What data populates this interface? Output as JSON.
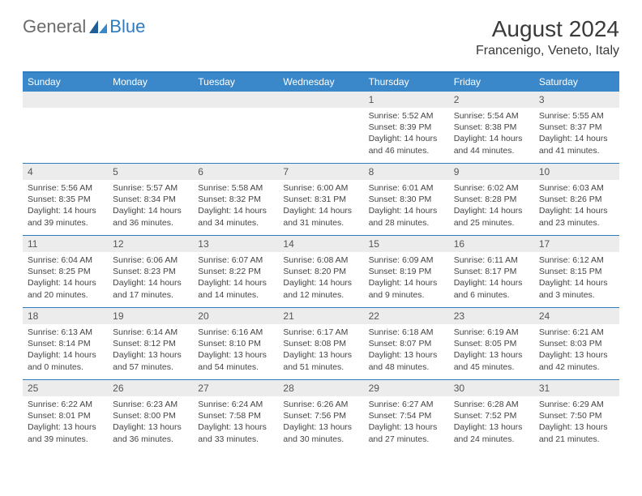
{
  "logo": {
    "text1": "General",
    "text2": "Blue"
  },
  "title": "August 2024",
  "subtitle": "Francenigo, Veneto, Italy",
  "colors": {
    "header_bar": "#3a88c9",
    "border": "#2f7bbf",
    "daynum_bg": "#ececec",
    "text": "#333333",
    "logo_gray": "#6b6b6b",
    "logo_blue": "#2f7bbf"
  },
  "day_headers": [
    "Sunday",
    "Monday",
    "Tuesday",
    "Wednesday",
    "Thursday",
    "Friday",
    "Saturday"
  ],
  "font": {
    "family": "Arial",
    "title_size": 28,
    "subtitle_size": 16,
    "header_size": 12,
    "body_size": 10.5
  },
  "weeks": [
    [
      {
        "day": "",
        "sunrise": "",
        "sunset": "",
        "daylight": ""
      },
      {
        "day": "",
        "sunrise": "",
        "sunset": "",
        "daylight": ""
      },
      {
        "day": "",
        "sunrise": "",
        "sunset": "",
        "daylight": ""
      },
      {
        "day": "",
        "sunrise": "",
        "sunset": "",
        "daylight": ""
      },
      {
        "day": "1",
        "sunrise": "Sunrise: 5:52 AM",
        "sunset": "Sunset: 8:39 PM",
        "daylight": "Daylight: 14 hours and 46 minutes."
      },
      {
        "day": "2",
        "sunrise": "Sunrise: 5:54 AM",
        "sunset": "Sunset: 8:38 PM",
        "daylight": "Daylight: 14 hours and 44 minutes."
      },
      {
        "day": "3",
        "sunrise": "Sunrise: 5:55 AM",
        "sunset": "Sunset: 8:37 PM",
        "daylight": "Daylight: 14 hours and 41 minutes."
      }
    ],
    [
      {
        "day": "4",
        "sunrise": "Sunrise: 5:56 AM",
        "sunset": "Sunset: 8:35 PM",
        "daylight": "Daylight: 14 hours and 39 minutes."
      },
      {
        "day": "5",
        "sunrise": "Sunrise: 5:57 AM",
        "sunset": "Sunset: 8:34 PM",
        "daylight": "Daylight: 14 hours and 36 minutes."
      },
      {
        "day": "6",
        "sunrise": "Sunrise: 5:58 AM",
        "sunset": "Sunset: 8:32 PM",
        "daylight": "Daylight: 14 hours and 34 minutes."
      },
      {
        "day": "7",
        "sunrise": "Sunrise: 6:00 AM",
        "sunset": "Sunset: 8:31 PM",
        "daylight": "Daylight: 14 hours and 31 minutes."
      },
      {
        "day": "8",
        "sunrise": "Sunrise: 6:01 AM",
        "sunset": "Sunset: 8:30 PM",
        "daylight": "Daylight: 14 hours and 28 minutes."
      },
      {
        "day": "9",
        "sunrise": "Sunrise: 6:02 AM",
        "sunset": "Sunset: 8:28 PM",
        "daylight": "Daylight: 14 hours and 25 minutes."
      },
      {
        "day": "10",
        "sunrise": "Sunrise: 6:03 AM",
        "sunset": "Sunset: 8:26 PM",
        "daylight": "Daylight: 14 hours and 23 minutes."
      }
    ],
    [
      {
        "day": "11",
        "sunrise": "Sunrise: 6:04 AM",
        "sunset": "Sunset: 8:25 PM",
        "daylight": "Daylight: 14 hours and 20 minutes."
      },
      {
        "day": "12",
        "sunrise": "Sunrise: 6:06 AM",
        "sunset": "Sunset: 8:23 PM",
        "daylight": "Daylight: 14 hours and 17 minutes."
      },
      {
        "day": "13",
        "sunrise": "Sunrise: 6:07 AM",
        "sunset": "Sunset: 8:22 PM",
        "daylight": "Daylight: 14 hours and 14 minutes."
      },
      {
        "day": "14",
        "sunrise": "Sunrise: 6:08 AM",
        "sunset": "Sunset: 8:20 PM",
        "daylight": "Daylight: 14 hours and 12 minutes."
      },
      {
        "day": "15",
        "sunrise": "Sunrise: 6:09 AM",
        "sunset": "Sunset: 8:19 PM",
        "daylight": "Daylight: 14 hours and 9 minutes."
      },
      {
        "day": "16",
        "sunrise": "Sunrise: 6:11 AM",
        "sunset": "Sunset: 8:17 PM",
        "daylight": "Daylight: 14 hours and 6 minutes."
      },
      {
        "day": "17",
        "sunrise": "Sunrise: 6:12 AM",
        "sunset": "Sunset: 8:15 PM",
        "daylight": "Daylight: 14 hours and 3 minutes."
      }
    ],
    [
      {
        "day": "18",
        "sunrise": "Sunrise: 6:13 AM",
        "sunset": "Sunset: 8:14 PM",
        "daylight": "Daylight: 14 hours and 0 minutes."
      },
      {
        "day": "19",
        "sunrise": "Sunrise: 6:14 AM",
        "sunset": "Sunset: 8:12 PM",
        "daylight": "Daylight: 13 hours and 57 minutes."
      },
      {
        "day": "20",
        "sunrise": "Sunrise: 6:16 AM",
        "sunset": "Sunset: 8:10 PM",
        "daylight": "Daylight: 13 hours and 54 minutes."
      },
      {
        "day": "21",
        "sunrise": "Sunrise: 6:17 AM",
        "sunset": "Sunset: 8:08 PM",
        "daylight": "Daylight: 13 hours and 51 minutes."
      },
      {
        "day": "22",
        "sunrise": "Sunrise: 6:18 AM",
        "sunset": "Sunset: 8:07 PM",
        "daylight": "Daylight: 13 hours and 48 minutes."
      },
      {
        "day": "23",
        "sunrise": "Sunrise: 6:19 AM",
        "sunset": "Sunset: 8:05 PM",
        "daylight": "Daylight: 13 hours and 45 minutes."
      },
      {
        "day": "24",
        "sunrise": "Sunrise: 6:21 AM",
        "sunset": "Sunset: 8:03 PM",
        "daylight": "Daylight: 13 hours and 42 minutes."
      }
    ],
    [
      {
        "day": "25",
        "sunrise": "Sunrise: 6:22 AM",
        "sunset": "Sunset: 8:01 PM",
        "daylight": "Daylight: 13 hours and 39 minutes."
      },
      {
        "day": "26",
        "sunrise": "Sunrise: 6:23 AM",
        "sunset": "Sunset: 8:00 PM",
        "daylight": "Daylight: 13 hours and 36 minutes."
      },
      {
        "day": "27",
        "sunrise": "Sunrise: 6:24 AM",
        "sunset": "Sunset: 7:58 PM",
        "daylight": "Daylight: 13 hours and 33 minutes."
      },
      {
        "day": "28",
        "sunrise": "Sunrise: 6:26 AM",
        "sunset": "Sunset: 7:56 PM",
        "daylight": "Daylight: 13 hours and 30 minutes."
      },
      {
        "day": "29",
        "sunrise": "Sunrise: 6:27 AM",
        "sunset": "Sunset: 7:54 PM",
        "daylight": "Daylight: 13 hours and 27 minutes."
      },
      {
        "day": "30",
        "sunrise": "Sunrise: 6:28 AM",
        "sunset": "Sunset: 7:52 PM",
        "daylight": "Daylight: 13 hours and 24 minutes."
      },
      {
        "day": "31",
        "sunrise": "Sunrise: 6:29 AM",
        "sunset": "Sunset: 7:50 PM",
        "daylight": "Daylight: 13 hours and 21 minutes."
      }
    ]
  ]
}
